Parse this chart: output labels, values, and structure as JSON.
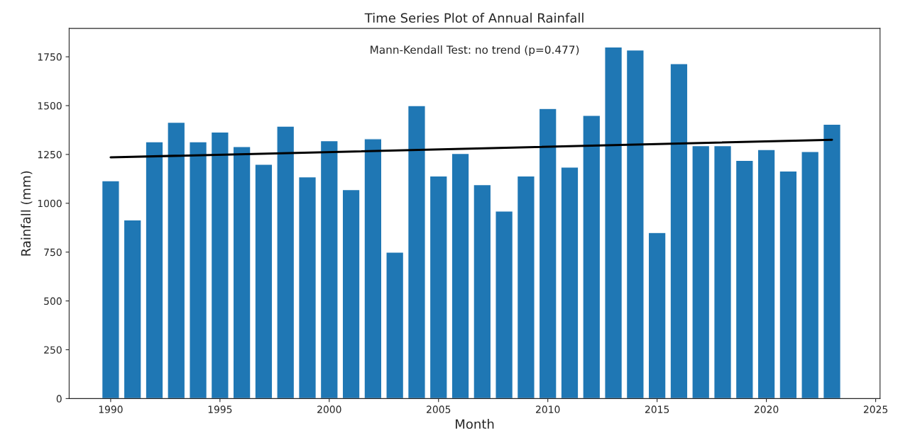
{
  "chart_data": {
    "type": "bar",
    "title": "Time Series Plot of Annual Rainfall",
    "xlabel": "Month",
    "ylabel": "Rainfall (mm)",
    "x": [
      1990,
      1991,
      1992,
      1993,
      1994,
      1995,
      1996,
      1997,
      1998,
      1999,
      2000,
      2001,
      2002,
      2003,
      2004,
      2005,
      2006,
      2007,
      2008,
      2009,
      2010,
      2011,
      2012,
      2013,
      2014,
      2015,
      2016,
      2017,
      2018,
      2019,
      2020,
      2021,
      2022,
      2023
    ],
    "series": [
      {
        "color": "#1f77b4",
        "values": [
          1115,
          915,
          1315,
          1415,
          1315,
          1365,
          1290,
          1200,
          1395,
          1135,
          1320,
          1070,
          1330,
          750,
          1500,
          1140,
          1255,
          1095,
          960,
          1140,
          1485,
          1185,
          1450,
          1800,
          1785,
          850,
          1715,
          1295,
          1295,
          1220,
          1275,
          1165,
          1265,
          1405
        ]
      },
      {
        "type": "line",
        "color": "#000000",
        "x": [
          1990,
          2023
        ],
        "values": [
          1235,
          1325
        ]
      }
    ],
    "annotations": [
      "Mann-Kendall Test: no trend (p=0.477)"
    ],
    "xlim": [
      1988.1,
      2025.2
    ],
    "xticks": [
      1990,
      1995,
      2000,
      2005,
      2010,
      2015,
      2020,
      2025
    ],
    "ylim": [
      0,
      1895
    ],
    "yticks": [
      0,
      250,
      500,
      750,
      1000,
      1250,
      1500,
      1750
    ],
    "grid": false
  }
}
